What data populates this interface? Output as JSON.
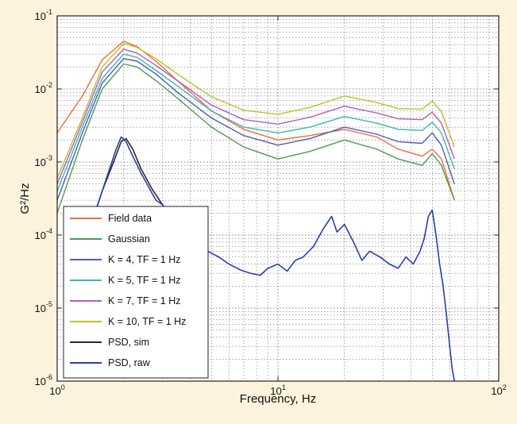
{
  "chart_data": {
    "type": "line",
    "xlabel": "Frequency, Hz",
    "ylabel": "G²/Hz",
    "x_scale": "log",
    "y_scale": "log",
    "xlim": [
      1,
      100
    ],
    "ylim": [
      1e-06,
      0.1
    ],
    "grid": true,
    "legend_position": "bottom-left",
    "x_ticks": [
      {
        "value": 1,
        "mant": "10",
        "exp": "0"
      },
      {
        "value": 10,
        "mant": "10",
        "exp": "1"
      },
      {
        "value": 100,
        "mant": "10",
        "exp": "2"
      }
    ],
    "y_ticks": [
      {
        "value": 0.1,
        "mant": "10",
        "exp": "-1"
      },
      {
        "value": 0.01,
        "mant": "10",
        "exp": "-2"
      },
      {
        "value": 0.001,
        "mant": "10",
        "exp": "-3"
      },
      {
        "value": 0.0001,
        "mant": "10",
        "exp": "-4"
      },
      {
        "value": 1e-05,
        "mant": "10",
        "exp": "-5"
      },
      {
        "value": 1e-06,
        "mant": "10",
        "exp": "-6"
      }
    ],
    "series": [
      {
        "name": "Field data",
        "color": "#f26b3a",
        "x": [
          1,
          1.3,
          1.6,
          2.0,
          2.3,
          2.8,
          3.5,
          5,
          7,
          10,
          14,
          20,
          28,
          35,
          45,
          50,
          55,
          63
        ],
        "y": [
          0.0025,
          0.008,
          0.025,
          0.045,
          0.038,
          0.024,
          0.013,
          0.005,
          0.0028,
          0.002,
          0.0023,
          0.0028,
          0.0022,
          0.0015,
          0.0012,
          0.0015,
          0.0011,
          0.0003
        ]
      },
      {
        "name": "Gaussian",
        "color": "#4f9a55",
        "x": [
          1,
          1.3,
          1.6,
          2.0,
          2.3,
          2.8,
          3.5,
          5,
          7,
          10,
          14,
          20,
          28,
          35,
          45,
          50,
          55,
          63
        ],
        "y": [
          0.0002,
          0.002,
          0.01,
          0.022,
          0.02,
          0.013,
          0.0075,
          0.003,
          0.0016,
          0.0011,
          0.0014,
          0.002,
          0.0015,
          0.0011,
          0.0009,
          0.0013,
          0.0009,
          0.0003
        ]
      },
      {
        "name": "K = 4, TF = 1 Hz",
        "color": "#4b5fb4",
        "x": [
          1,
          1.3,
          1.6,
          2.0,
          2.3,
          2.8,
          3.5,
          5,
          7,
          10,
          14,
          20,
          28,
          35,
          45,
          50,
          55,
          63
        ],
        "y": [
          0.0003,
          0.0025,
          0.012,
          0.026,
          0.024,
          0.016,
          0.009,
          0.004,
          0.0023,
          0.0017,
          0.0021,
          0.003,
          0.0024,
          0.0019,
          0.0018,
          0.0025,
          0.0017,
          0.0005
        ]
      },
      {
        "name": "K = 5, TF = 1 Hz",
        "color": "#3fb7b7",
        "x": [
          1,
          1.3,
          1.6,
          2.0,
          2.3,
          2.8,
          3.5,
          5,
          7,
          10,
          14,
          20,
          28,
          35,
          45,
          50,
          55,
          63
        ],
        "y": [
          0.0004,
          0.003,
          0.014,
          0.03,
          0.027,
          0.018,
          0.011,
          0.005,
          0.003,
          0.0025,
          0.003,
          0.0042,
          0.0034,
          0.0028,
          0.0027,
          0.0035,
          0.0025,
          0.0008
        ]
      },
      {
        "name": "K = 7, TF = 1 Hz",
        "color": "#b05fbf",
        "x": [
          1,
          1.3,
          1.6,
          2.0,
          2.3,
          2.8,
          3.5,
          5,
          7,
          10,
          14,
          20,
          28,
          35,
          45,
          50,
          55,
          63
        ],
        "y": [
          0.0005,
          0.0035,
          0.017,
          0.035,
          0.031,
          0.021,
          0.013,
          0.006,
          0.0038,
          0.0033,
          0.0041,
          0.0058,
          0.0047,
          0.0039,
          0.0038,
          0.0048,
          0.0034,
          0.0011
        ]
      },
      {
        "name": "K = 10, TF = 1 Hz",
        "color": "#bcc12a",
        "x": [
          1,
          1.3,
          1.6,
          2.0,
          2.3,
          2.8,
          3.5,
          5,
          7,
          10,
          14,
          20,
          28,
          35,
          45,
          50,
          55,
          63
        ],
        "y": [
          0.0006,
          0.004,
          0.02,
          0.042,
          0.037,
          0.026,
          0.016,
          0.0078,
          0.0051,
          0.0045,
          0.0056,
          0.008,
          0.0065,
          0.0054,
          0.0053,
          0.0068,
          0.0049,
          0.0016
        ]
      },
      {
        "name": "PSD, sim",
        "color": "#2b2b2b",
        "x": [
          1.4,
          1.6,
          1.8,
          1.95,
          2.05,
          2.2,
          2.4,
          2.7,
          3.0,
          3.5
        ],
        "y": [
          0.00012,
          0.0004,
          0.001,
          0.0019,
          0.0021,
          0.0015,
          0.0008,
          0.00042,
          0.00026,
          0.00012
        ]
      },
      {
        "name": "PSD, raw",
        "color": "#2a3fa8",
        "x": [
          1.4,
          1.55,
          1.7,
          1.85,
          1.95,
          2.05,
          2.2,
          2.4,
          2.6,
          2.8,
          3.0,
          3.3,
          3.7,
          4.2,
          4.8,
          5.4,
          6.0,
          6.8,
          7.5,
          8.3,
          9.0,
          10.0,
          11.0,
          12.0,
          13.0,
          14.5,
          16.0,
          17.5,
          18.5,
          20.0,
          22.0,
          24.0,
          26.0,
          29.0,
          32.0,
          35.0,
          38.0,
          41.0,
          44.0,
          46.0,
          48.0,
          50.0,
          52.0,
          54.0,
          56.0,
          58.0,
          60.0,
          61.5,
          63.0
        ],
        "y": [
          0.00011,
          0.0003,
          0.0007,
          0.0015,
          0.0022,
          0.0019,
          0.0012,
          0.0007,
          0.00045,
          0.0003,
          0.00026,
          0.00016,
          0.00011,
          8e-05,
          6e-05,
          5e-05,
          4e-05,
          3.3e-05,
          3e-05,
          2.8e-05,
          3.5e-05,
          4e-05,
          3.2e-05,
          4.5e-05,
          5e-05,
          7e-05,
          0.00012,
          0.00018,
          0.00011,
          0.00014,
          8e-05,
          4.5e-05,
          6e-05,
          5e-05,
          4e-05,
          3.5e-05,
          5e-05,
          4e-05,
          6e-05,
          9e-05,
          0.00018,
          0.00022,
          0.0001,
          4e-05,
          2e-05,
          8e-06,
          3e-06,
          1.5e-06,
          1e-06
        ]
      }
    ]
  }
}
